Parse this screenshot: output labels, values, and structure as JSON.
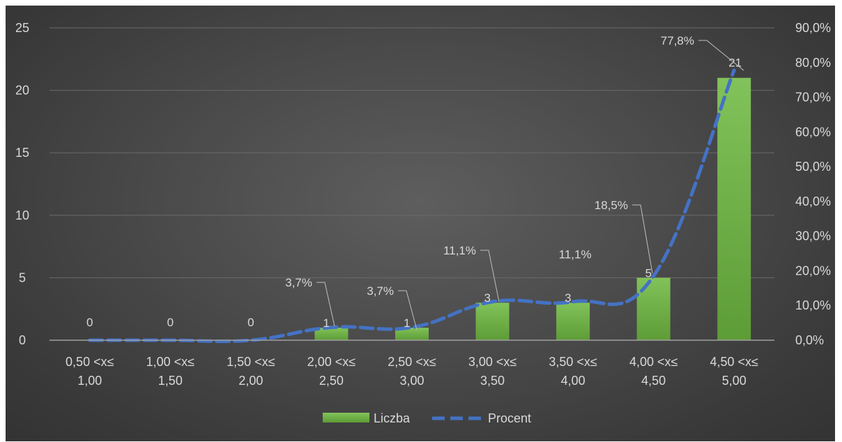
{
  "chart_data": {
    "type": "bar",
    "categories": [
      [
        "0,50 <x≤",
        "1,00"
      ],
      [
        "1,00 <x≤",
        "1,50"
      ],
      [
        "1,50 <x≤",
        "2,00"
      ],
      [
        "2,00 <x≤",
        "2,50"
      ],
      [
        "2,50 <x≤",
        "3,00"
      ],
      [
        "3,00 <x≤",
        "3,50"
      ],
      [
        "3,50 <x≤",
        "4,00"
      ],
      [
        "4,00 <x≤",
        "4,50"
      ],
      [
        "4,50 <x≤",
        "5,00"
      ]
    ],
    "series": [
      {
        "name": "Liczba",
        "type": "bar",
        "axis": "left",
        "values": [
          0,
          0,
          0,
          1,
          1,
          3,
          3,
          5,
          21
        ],
        "labels": [
          "0",
          "0",
          "0",
          "1",
          "1",
          "3",
          "3",
          "5",
          "21"
        ],
        "color": "#70ad47"
      },
      {
        "name": "Procent",
        "type": "line",
        "axis": "right",
        "values": [
          0,
          0,
          0,
          3.7,
          3.7,
          11.1,
          11.1,
          18.5,
          77.8
        ],
        "labels": [
          null,
          null,
          null,
          "3,7%",
          "3,7%",
          "11,1%",
          "11,1%",
          "18,5%",
          "77,8%"
        ],
        "color": "#4472c4",
        "style": "dashed"
      }
    ],
    "y_left": {
      "ylim": [
        0,
        25
      ],
      "ticks": [
        "0",
        "5",
        "10",
        "15",
        "20",
        "25"
      ]
    },
    "y_right": {
      "ylim": [
        0,
        90
      ],
      "ticks": [
        "0,0%",
        "10,0%",
        "20,0%",
        "30,0%",
        "40,0%",
        "50,0%",
        "60,0%",
        "70,0%",
        "80,0%",
        "90,0%"
      ]
    },
    "grid": true,
    "legend": {
      "position": "bottom",
      "entries": [
        "Liczba",
        "Procent"
      ]
    },
    "background": "#4a4a4a"
  }
}
